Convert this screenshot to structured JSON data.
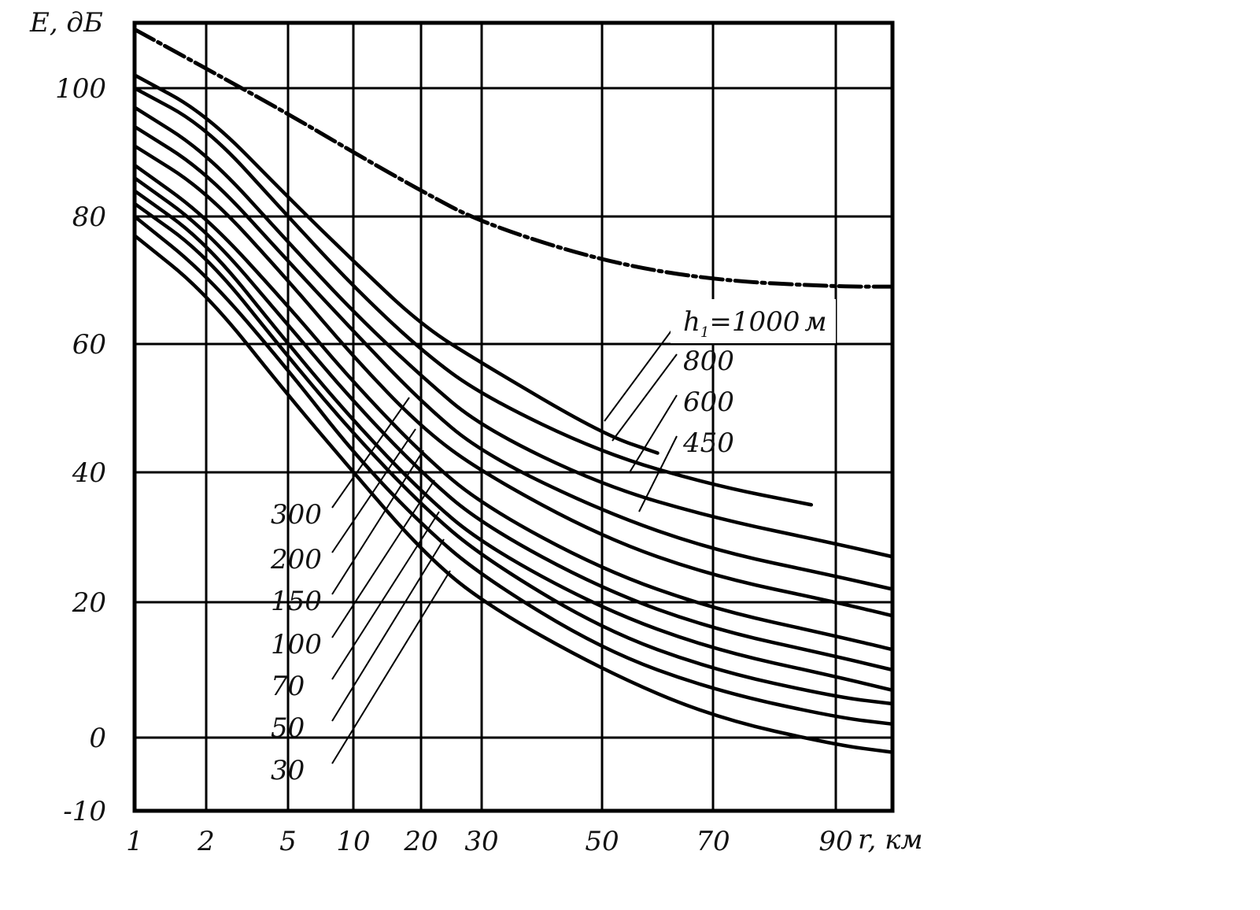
{
  "chart_data": {
    "type": "line",
    "ylabel": "E, дБ",
    "xlabel": "r, км",
    "y_ticks": [
      "100",
      "80",
      "60",
      "40",
      "20",
      "0",
      "-10"
    ],
    "x_ticks": [
      "1",
      "2",
      "5",
      "10",
      "20",
      "30",
      "50",
      "70",
      "90"
    ],
    "ylim": [
      -10,
      110
    ],
    "xlim": [
      1,
      100
    ],
    "grid": true,
    "curve_label_prefix": "h",
    "curve_label_subscript": "1",
    "curve_label_unit": "м",
    "series": [
      {
        "label": "",
        "style": "dash-dot",
        "points": [
          [
            1,
            109
          ],
          [
            2,
            103
          ],
          [
            5,
            96
          ],
          [
            10,
            90
          ],
          [
            20,
            84
          ],
          [
            30,
            79
          ],
          [
            50,
            73
          ],
          [
            70,
            70
          ],
          [
            90,
            69
          ],
          [
            100,
            69
          ]
        ]
      },
      {
        "label": "1000",
        "points": [
          [
            1,
            102
          ],
          [
            2,
            96
          ],
          [
            5,
            83
          ],
          [
            10,
            73
          ],
          [
            20,
            63
          ],
          [
            30,
            57
          ],
          [
            50,
            46
          ],
          [
            60,
            43
          ]
        ]
      },
      {
        "label": "800",
        "points": [
          [
            1,
            100
          ],
          [
            2,
            94
          ],
          [
            5,
            80
          ],
          [
            10,
            69
          ],
          [
            20,
            59
          ],
          [
            30,
            52
          ],
          [
            50,
            43
          ],
          [
            70,
            38
          ],
          [
            86,
            35
          ]
        ]
      },
      {
        "label": "600",
        "points": [
          [
            1,
            97
          ],
          [
            2,
            90
          ],
          [
            5,
            76
          ],
          [
            10,
            65
          ],
          [
            20,
            55
          ],
          [
            30,
            47
          ],
          [
            50,
            38
          ],
          [
            70,
            33
          ],
          [
            90,
            29
          ],
          [
            100,
            27
          ]
        ]
      },
      {
        "label": "450",
        "points": [
          [
            1,
            94
          ],
          [
            2,
            87
          ],
          [
            5,
            73
          ],
          [
            10,
            62
          ],
          [
            20,
            51
          ],
          [
            30,
            43
          ],
          [
            50,
            34
          ],
          [
            70,
            28
          ],
          [
            90,
            24
          ],
          [
            100,
            22
          ]
        ]
      },
      {
        "label": "300",
        "points": [
          [
            1,
            91
          ],
          [
            2,
            84
          ],
          [
            5,
            70
          ],
          [
            10,
            58
          ],
          [
            20,
            47
          ],
          [
            30,
            40
          ],
          [
            50,
            30
          ],
          [
            70,
            24
          ],
          [
            90,
            20
          ],
          [
            100,
            18
          ]
        ]
      },
      {
        "label": "200",
        "points": [
          [
            1,
            88
          ],
          [
            2,
            80
          ],
          [
            5,
            66
          ],
          [
            10,
            54
          ],
          [
            20,
            43
          ],
          [
            30,
            35
          ],
          [
            50,
            25
          ],
          [
            70,
            19
          ],
          [
            90,
            15
          ],
          [
            100,
            13
          ]
        ]
      },
      {
        "label": "150",
        "points": [
          [
            1,
            86
          ],
          [
            2,
            78
          ],
          [
            5,
            63
          ],
          [
            10,
            51
          ],
          [
            20,
            40
          ],
          [
            30,
            32
          ],
          [
            50,
            22
          ],
          [
            70,
            16
          ],
          [
            90,
            12
          ],
          [
            100,
            10
          ]
        ]
      },
      {
        "label": "100",
        "points": [
          [
            1,
            84
          ],
          [
            2,
            76
          ],
          [
            5,
            60
          ],
          [
            10,
            48
          ],
          [
            20,
            37
          ],
          [
            30,
            29
          ],
          [
            50,
            19
          ],
          [
            70,
            13
          ],
          [
            90,
            9
          ],
          [
            100,
            7
          ]
        ]
      },
      {
        "label": "70",
        "points": [
          [
            1,
            82
          ],
          [
            2,
            74
          ],
          [
            5,
            58
          ],
          [
            10,
            46
          ],
          [
            20,
            35
          ],
          [
            30,
            27
          ],
          [
            50,
            16
          ],
          [
            70,
            10
          ],
          [
            90,
            6
          ],
          [
            100,
            5
          ]
        ]
      },
      {
        "label": "50",
        "points": [
          [
            1,
            80
          ],
          [
            2,
            71
          ],
          [
            5,
            56
          ],
          [
            10,
            43
          ],
          [
            20,
            32
          ],
          [
            30,
            24
          ],
          [
            50,
            13
          ],
          [
            70,
            7
          ],
          [
            90,
            3
          ],
          [
            100,
            2
          ]
        ]
      },
      {
        "label": "30",
        "points": [
          [
            1,
            77
          ],
          [
            2,
            68
          ],
          [
            5,
            52
          ],
          [
            10,
            40
          ],
          [
            20,
            28
          ],
          [
            30,
            20
          ],
          [
            50,
            10
          ],
          [
            70,
            3
          ],
          [
            90,
            -1
          ],
          [
            100,
            -2
          ]
        ]
      }
    ]
  }
}
